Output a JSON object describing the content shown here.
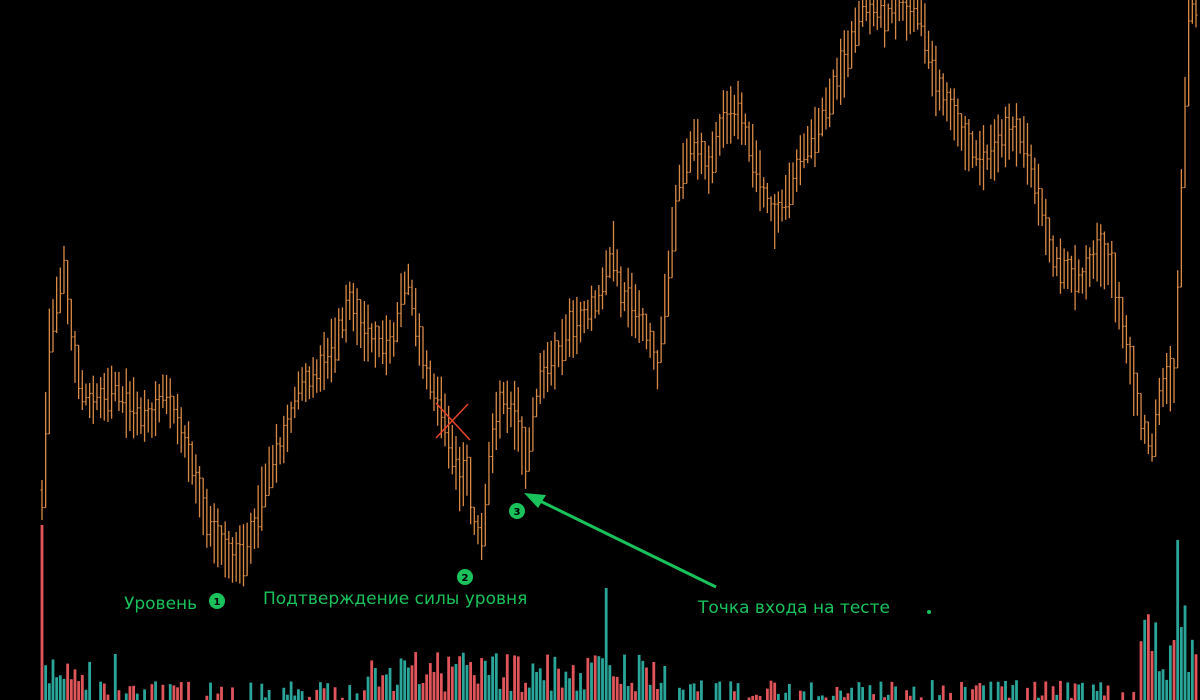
{
  "colors": {
    "background": "#000000",
    "price": "#d98a45",
    "annotation": "#19c25a",
    "volume_up": "#2aa59a",
    "volume_down": "#e0555a",
    "cross": "#e8452a"
  },
  "annotations": {
    "level_label": "Уровень",
    "confirm_label": "Подтверждение силы уровня",
    "entry_label": "Точка входа на тесте",
    "marker_1": "1",
    "marker_2": "2",
    "marker_3": "3"
  },
  "chart_data": {
    "type": "bar",
    "style": "ohlc",
    "title": "",
    "xlabel": "",
    "ylabel": "",
    "grid": false,
    "legend": "none",
    "price_range": [
      0,
      700
    ],
    "price_anchors": [
      [
        0,
        490
      ],
      [
        1,
        420
      ],
      [
        2,
        340
      ],
      [
        5,
        285
      ],
      [
        6,
        270
      ],
      [
        8,
        330
      ],
      [
        10,
        385
      ],
      [
        13,
        400
      ],
      [
        20,
        390
      ],
      [
        25,
        410
      ],
      [
        30,
        420
      ],
      [
        33,
        390
      ],
      [
        36,
        410
      ],
      [
        40,
        450
      ],
      [
        45,
        520
      ],
      [
        48,
        540
      ],
      [
        52,
        560
      ],
      [
        55,
        555
      ],
      [
        58,
        530
      ],
      [
        62,
        470
      ],
      [
        66,
        440
      ],
      [
        70,
        390
      ],
      [
        75,
        375
      ],
      [
        80,
        345
      ],
      [
        84,
        300
      ],
      [
        88,
        330
      ],
      [
        92,
        345
      ],
      [
        96,
        340
      ],
      [
        98,
        300
      ],
      [
        100,
        280
      ],
      [
        104,
        360
      ],
      [
        108,
        400
      ],
      [
        110,
        420
      ],
      [
        112,
        450
      ],
      [
        114,
        480
      ],
      [
        116,
        470
      ],
      [
        118,
        520
      ],
      [
        120,
        540
      ],
      [
        122,
        460
      ],
      [
        124,
        420
      ],
      [
        126,
        400
      ],
      [
        130,
        420
      ],
      [
        132,
        470
      ],
      [
        134,
        420
      ],
      [
        136,
        380
      ],
      [
        140,
        360
      ],
      [
        144,
        330
      ],
      [
        148,
        320
      ],
      [
        152,
        300
      ],
      [
        156,
        250
      ],
      [
        158,
        290
      ],
      [
        162,
        310
      ],
      [
        166,
        340
      ],
      [
        168,
        370
      ],
      [
        170,
        300
      ],
      [
        174,
        180
      ],
      [
        178,
        140
      ],
      [
        182,
        170
      ],
      [
        186,
        120
      ],
      [
        190,
        110
      ],
      [
        192,
        130
      ],
      [
        196,
        180
      ],
      [
        200,
        220
      ],
      [
        204,
        190
      ],
      [
        208,
        150
      ],
      [
        212,
        130
      ],
      [
        216,
        90
      ],
      [
        220,
        55
      ],
      [
        224,
        10
      ],
      [
        228,
        5
      ],
      [
        230,
        20
      ],
      [
        232,
        8
      ],
      [
        236,
        10
      ],
      [
        240,
        20
      ],
      [
        244,
        80
      ],
      [
        248,
        110
      ],
      [
        252,
        140
      ],
      [
        256,
        160
      ],
      [
        260,
        150
      ],
      [
        264,
        130
      ],
      [
        268,
        140
      ],
      [
        272,
        195
      ],
      [
        276,
        260
      ],
      [
        280,
        270
      ],
      [
        284,
        280
      ],
      [
        288,
        250
      ],
      [
        292,
        270
      ],
      [
        296,
        340
      ],
      [
        300,
        420
      ],
      [
        303,
        450
      ],
      [
        305,
        400
      ],
      [
        307,
        380
      ],
      [
        309,
        380
      ],
      [
        311,
        200
      ],
      [
        313,
        10
      ],
      [
        316,
        0
      ]
    ],
    "num_bars": 316,
    "volume_range": [
      0,
      160
    ]
  }
}
